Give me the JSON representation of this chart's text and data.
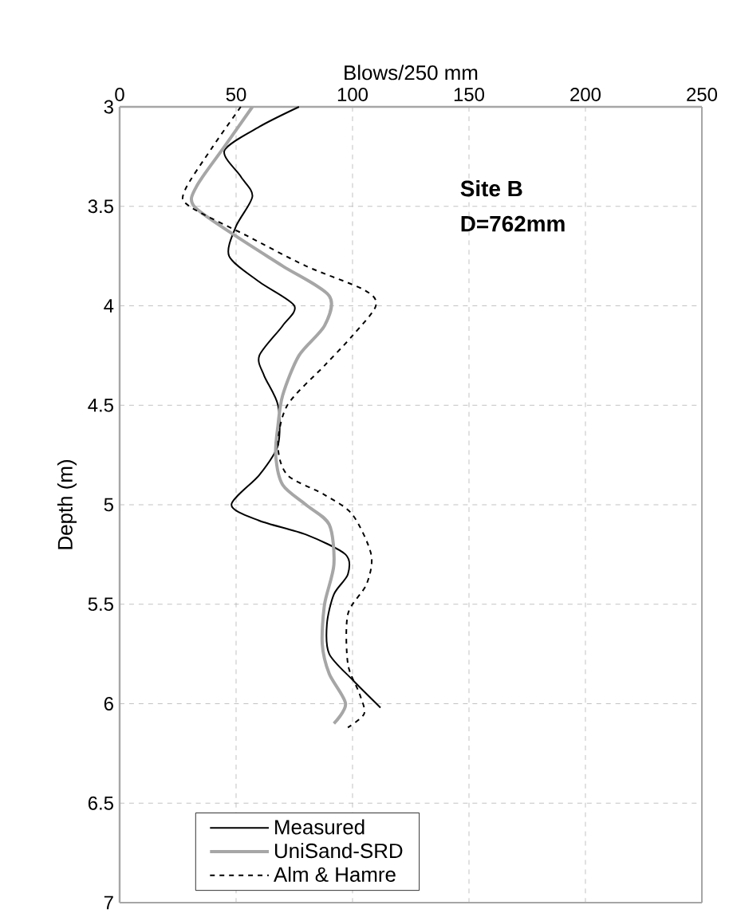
{
  "chart_data": {
    "type": "line",
    "xlabel": "Blows/250 mm",
    "ylabel": "Depth (m)",
    "xlim": [
      0,
      250
    ],
    "xticks": [
      0,
      50,
      100,
      150,
      200,
      250
    ],
    "ylim": [
      7,
      3
    ],
    "yticks": [
      3,
      3.5,
      4,
      4.5,
      5,
      5.5,
      6,
      6.5,
      7
    ],
    "grid": true,
    "legend": "bottom left",
    "marker": "none",
    "annotations": [
      "Site B",
      "D=762mm"
    ],
    "series": [
      {
        "name": "Measured",
        "color": "#000000",
        "line_style": "solid",
        "x": [
          77,
          60,
          45,
          52,
          57,
          50,
          47,
          60,
          75,
          70,
          60,
          62,
          68,
          68,
          60,
          48,
          60,
          80,
          97,
          98,
          92,
          89,
          90,
          100,
          112
        ],
        "values": [
          3.0,
          3.1,
          3.22,
          3.35,
          3.45,
          3.6,
          3.75,
          3.88,
          4.0,
          4.1,
          4.25,
          4.35,
          4.5,
          4.7,
          4.85,
          5.0,
          5.08,
          5.15,
          5.25,
          5.35,
          5.45,
          5.6,
          5.75,
          5.88,
          6.02
        ]
      },
      {
        "name": "UniSand-SRD",
        "color": "#a6a6a6",
        "line_style": "solid",
        "x": [
          57,
          45,
          33,
          32,
          50,
          70,
          90,
          88,
          77,
          70,
          68,
          67,
          70,
          80,
          90,
          92,
          88,
          87,
          90,
          97,
          92
        ],
        "values": [
          3.0,
          3.2,
          3.4,
          3.5,
          3.65,
          3.8,
          3.95,
          4.1,
          4.25,
          4.45,
          4.6,
          4.75,
          4.9,
          5.0,
          5.1,
          5.3,
          5.5,
          5.7,
          5.85,
          6.0,
          6.1
        ]
      },
      {
        "name": "Alm & Hamre",
        "color": "#000000",
        "line_style": "dashed",
        "x": [
          52,
          40,
          28,
          30,
          55,
          80,
          105,
          110,
          100,
          88,
          72,
          68,
          72,
          88,
          100,
          108,
          106,
          98,
          98,
          103,
          105,
          98
        ],
        "values": [
          3.0,
          3.2,
          3.42,
          3.5,
          3.65,
          3.8,
          3.92,
          4.0,
          4.15,
          4.3,
          4.5,
          4.7,
          4.85,
          4.95,
          5.05,
          5.25,
          5.4,
          5.55,
          5.8,
          5.95,
          6.05,
          6.12
        ]
      }
    ]
  }
}
